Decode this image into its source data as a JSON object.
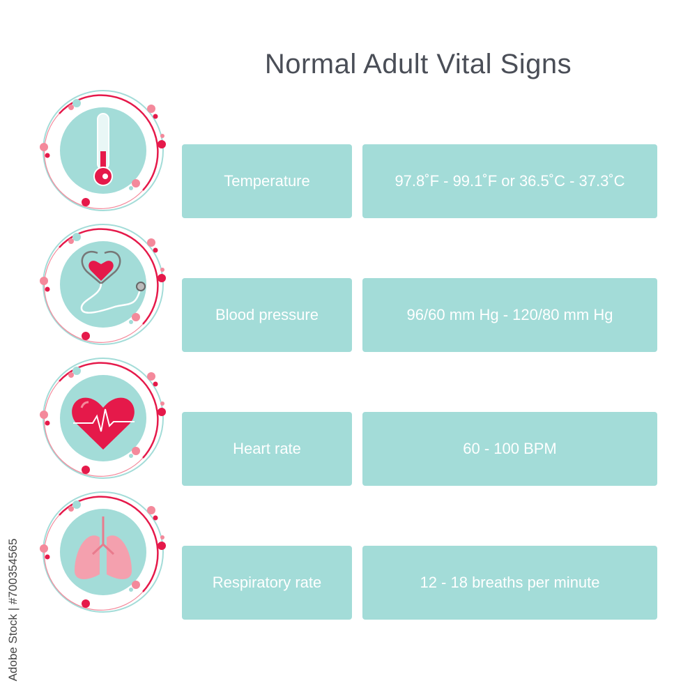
{
  "title": "Normal Adult Vital Signs",
  "colors": {
    "teal": "#a3dcd8",
    "red": "#e5194a",
    "pink": "#f4899b",
    "title": "#4a4e57"
  },
  "rows": [
    {
      "icon": "thermometer-icon",
      "label": "Temperature",
      "value": "97.8˚F - 99.1˚F or 36.5˚C - 37.3˚C"
    },
    {
      "icon": "stethoscope-heart-icon",
      "label": "Blood pressure",
      "value": "96/60 mm Hg - 120/80 mm Hg"
    },
    {
      "icon": "heart-pulse-icon",
      "label": "Heart rate",
      "value": "60 - 100 BPM"
    },
    {
      "icon": "lungs-icon",
      "label": "Respiratory rate",
      "value": "12 - 18 breaths per minute"
    }
  ],
  "watermark": "Adobe Stock | #700354565"
}
